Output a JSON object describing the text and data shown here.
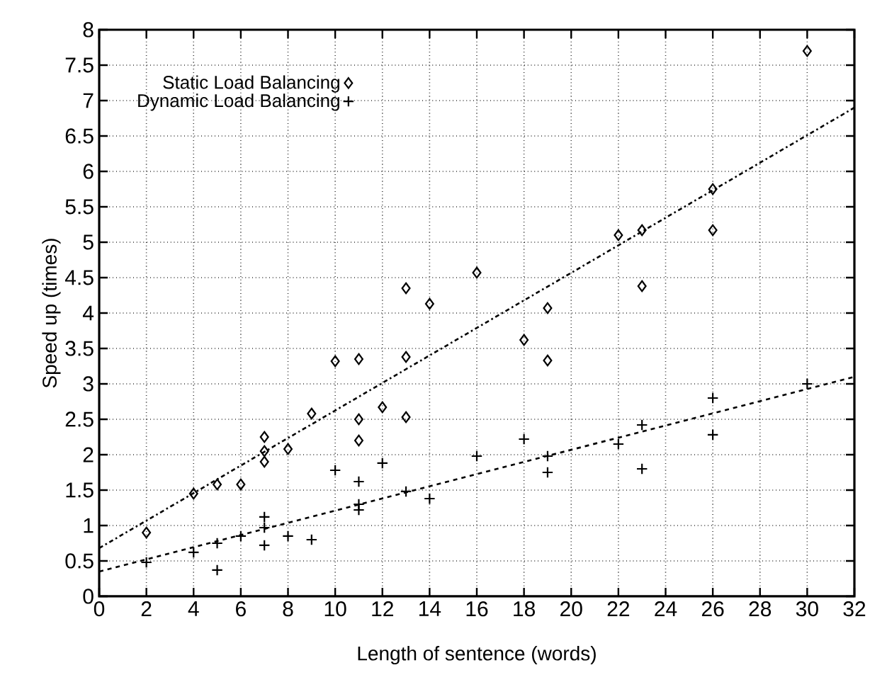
{
  "chart_data": {
    "type": "scatter",
    "xlabel": "Length of sentence (words)",
    "ylabel": "Speed up (times)",
    "xlim": [
      0,
      32
    ],
    "xticks": [
      0,
      2,
      4,
      6,
      8,
      10,
      12,
      14,
      16,
      18,
      20,
      22,
      24,
      26,
      28,
      30,
      32
    ],
    "ylim": [
      0,
      8
    ],
    "yticks": [
      0,
      0.5,
      1,
      1.5,
      2,
      2.5,
      3,
      3.5,
      4,
      4.5,
      5,
      5.5,
      6,
      6.5,
      7,
      7.5,
      8
    ],
    "grid": true,
    "legend": "top left",
    "series": [
      {
        "name": "Static Load Balancing",
        "color": "#000000",
        "marker": "diamond",
        "x": [
          2,
          4,
          5,
          6,
          7,
          7,
          7,
          8,
          9,
          10,
          11,
          11,
          11,
          12,
          13,
          13,
          13,
          14,
          16,
          18,
          19,
          19,
          22,
          23,
          23,
          26,
          26,
          30
        ],
        "values": [
          0.9,
          1.45,
          1.58,
          1.58,
          2.25,
          2.05,
          1.9,
          2.08,
          2.58,
          3.32,
          3.35,
          2.5,
          2.2,
          2.67,
          4.35,
          3.38,
          2.53,
          4.13,
          4.57,
          3.62,
          4.07,
          3.33,
          5.1,
          5.17,
          4.38,
          5.75,
          5.17,
          7.7
        ]
      },
      {
        "name": "Dynamic Load Balancing",
        "color": "#000000",
        "marker": "cross",
        "x": [
          2,
          4,
          5,
          5,
          6,
          7,
          7,
          7,
          8,
          9,
          10,
          11,
          11,
          11,
          12,
          13,
          14,
          16,
          18,
          19,
          19,
          22,
          23,
          23,
          26,
          26,
          30
        ],
        "values": [
          0.48,
          0.62,
          0.75,
          0.37,
          0.85,
          1.12,
          0.97,
          0.72,
          0.85,
          0.8,
          1.78,
          1.62,
          1.3,
          1.22,
          1.88,
          1.48,
          1.38,
          1.98,
          2.22,
          1.98,
          1.75,
          2.15,
          2.42,
          1.8,
          2.8,
          2.28,
          3.0
        ]
      },
      {
        "type": "line",
        "color": "#000000",
        "line_style": "dashdot",
        "marker": "none",
        "x": [
          0,
          32
        ],
        "values": [
          0.68,
          6.9
        ]
      },
      {
        "type": "line",
        "color": "#000000",
        "line_style": "dashed",
        "marker": "none",
        "x": [
          0,
          32
        ],
        "values": [
          0.35,
          3.1
        ]
      }
    ]
  }
}
